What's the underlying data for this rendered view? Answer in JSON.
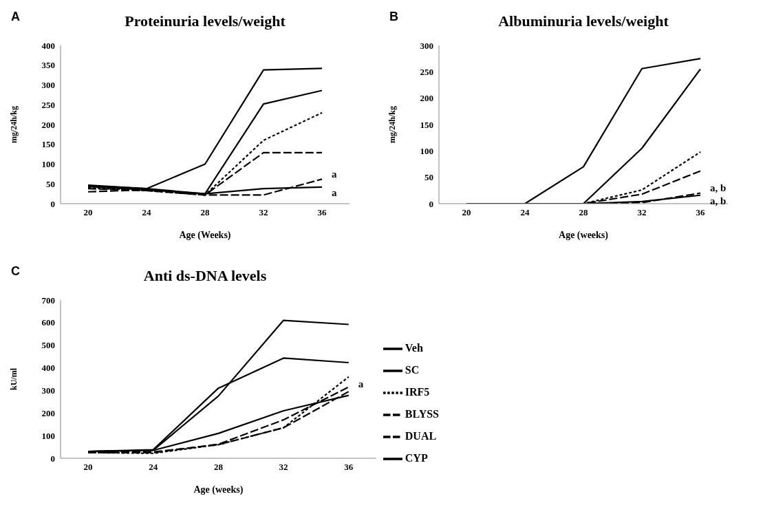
{
  "chart_data": [
    {
      "type": "line",
      "title": "Proteinuria levels/weight",
      "xlabel": "Age (Weeks)",
      "ylabel": "mg/24h/kg",
      "categories": [
        "20",
        "24",
        "28",
        "32",
        "36"
      ],
      "ylim": [
        0,
        400
      ],
      "yticks": [
        0,
        50,
        100,
        150,
        200,
        250,
        300,
        350,
        400
      ],
      "grid": false,
      "legend": false,
      "marker": "none",
      "series": [
        {
          "color": "#000000",
          "line_style": "solid",
          "values": [
            45,
            38,
            100,
            338,
            342
          ]
        },
        {
          "color": "#000000",
          "line_style": "solid",
          "values": [
            47,
            38,
            25,
            252,
            286
          ]
        },
        {
          "color": "#000000",
          "line_style": "dotted",
          "values": [
            40,
            33,
            22,
            160,
            230
          ]
        },
        {
          "color": "#000000",
          "line_style": "dashed",
          "values": [
            38,
            33,
            22,
            129,
            129
          ]
        },
        {
          "color": "#000000",
          "line_style": "dashed",
          "values": [
            30,
            35,
            22,
            22,
            62
          ]
        },
        {
          "color": "#000000",
          "line_style": "solid",
          "values": [
            43,
            35,
            25,
            38,
            42
          ]
        }
      ],
      "annotations": [
        "A",
        {
          "text": "a",
          "x": "36",
          "y": 62
        },
        {
          "text": "a",
          "x": "36",
          "y": 42
        }
      ]
    },
    {
      "type": "line",
      "title": "Albuminuria levels/weight",
      "xlabel": "Age (weeks)",
      "ylabel": "mg/24h/kg",
      "categories": [
        "20",
        "24",
        "28",
        "32",
        "36"
      ],
      "ylim": [
        0,
        300
      ],
      "yticks": [
        0,
        50,
        100,
        150,
        200,
        250,
        300
      ],
      "grid": false,
      "legend": false,
      "marker": "none",
      "series": [
        {
          "color": "#000000",
          "line_style": "solid",
          "values": [
            0,
            0,
            70,
            256,
            275
          ]
        },
        {
          "color": "#000000",
          "line_style": "solid",
          "values": [
            0,
            0,
            0,
            105,
            255
          ]
        },
        {
          "color": "#000000",
          "line_style": "dotted",
          "values": [
            0,
            0,
            0,
            26,
            98
          ]
        },
        {
          "color": "#000000",
          "line_style": "dashed",
          "values": [
            0,
            0,
            0,
            18,
            62
          ]
        },
        {
          "color": "#000000",
          "line_style": "dashed",
          "values": [
            0,
            0,
            0,
            2,
            20
          ]
        },
        {
          "color": "#000000",
          "line_style": "solid",
          "values": [
            0,
            0,
            0,
            4,
            16
          ]
        }
      ],
      "annotations": [
        "B",
        {
          "text": "a, b",
          "x": "36",
          "y": 20
        },
        {
          "text": "a, b",
          "x": "36",
          "y": 16
        }
      ]
    },
    {
      "type": "line",
      "title": "Anti ds-DNA levels",
      "xlabel": "Age (weeks)",
      "ylabel": "kU/ml",
      "categories": [
        "20",
        "24",
        "28",
        "32",
        "36"
      ],
      "ylim": [
        0,
        700
      ],
      "yticks": [
        0,
        100,
        200,
        300,
        400,
        500,
        600,
        700
      ],
      "grid": false,
      "legend": "right",
      "marker": "none",
      "series": [
        {
          "name": "Veh",
          "color": "#000000",
          "line_style": "solid",
          "values": [
            30,
            35,
            275,
            610,
            592
          ]
        },
        {
          "name": "SC",
          "color": "#000000",
          "line_style": "solid",
          "values": [
            30,
            38,
            310,
            443,
            423
          ]
        },
        {
          "name": "IRF5",
          "color": "#000000",
          "line_style": "dotted",
          "values": [
            25,
            22,
            60,
            135,
            360
          ]
        },
        {
          "name": "BLYSS",
          "color": "#000000",
          "line_style": "dashed",
          "values": [
            25,
            25,
            62,
            170,
            315
          ]
        },
        {
          "name": "DUAL",
          "color": "#000000",
          "line_style": "dashed",
          "values": [
            28,
            28,
            60,
            135,
            295
          ]
        },
        {
          "name": "CYP",
          "color": "#000000",
          "line_style": "solid",
          "values": [
            30,
            35,
            110,
            210,
            278
          ]
        }
      ],
      "annotations": [
        "C",
        {
          "text": "a",
          "x": "36",
          "y": 330
        }
      ]
    }
  ]
}
